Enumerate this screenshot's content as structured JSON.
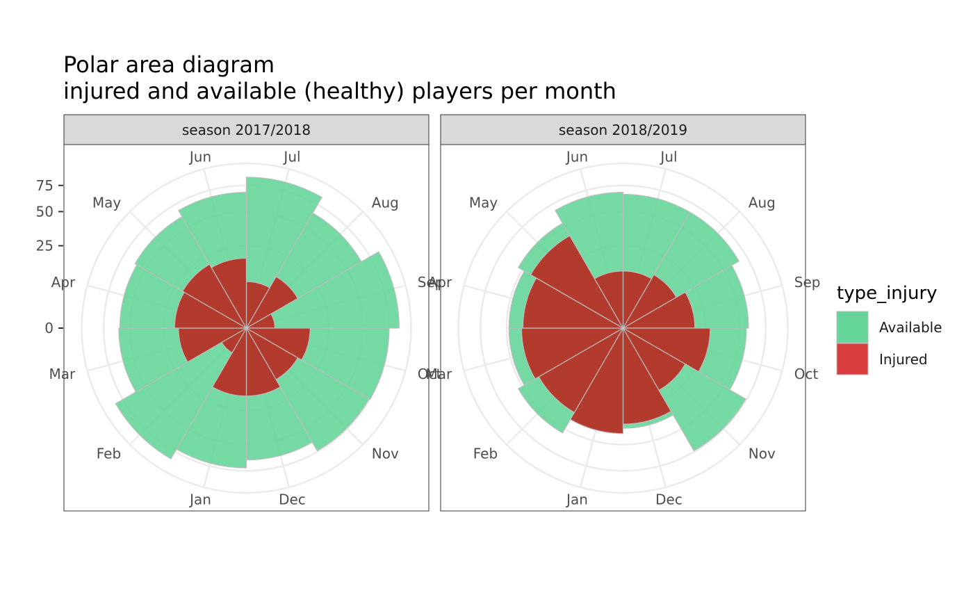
{
  "chart_data": {
    "type": "polar-area",
    "title_lines": [
      "Polar area diagram",
      "injured and available (healthy) players per month"
    ],
    "radial_scale": "sqrt",
    "radial_ticks": [
      0,
      25,
      50,
      75
    ],
    "radial_max": 100,
    "months": [
      "Jul",
      "Aug",
      "Sep",
      "Oct",
      "Nov",
      "Dec",
      "Jan",
      "Feb",
      "Mar",
      "Apr",
      "May",
      "Jun"
    ],
    "legend": {
      "title": "type_injury",
      "entries": [
        {
          "label": "Available",
          "color": "#66d59a"
        },
        {
          "label": "Injured",
          "color": "#d93c3c"
        }
      ]
    },
    "colors": {
      "injured_overlay": "#b5362a",
      "stroke": "#bdbdbd",
      "grid": "#ebebeb"
    },
    "facets": [
      {
        "strip": "season 2017/2018",
        "available": [
          84,
          65,
          86,
          75,
          74,
          64,
          72,
          84,
          60,
          59,
          61,
          68
        ],
        "injured": [
          8,
          13,
          3,
          15,
          13,
          17,
          17,
          3,
          17,
          19,
          20,
          18
        ]
      },
      {
        "strip": "season 2018/2019",
        "available": [
          66,
          66,
          58,
          56,
          74,
          37,
          40,
          54,
          48,
          48,
          54,
          68
        ],
        "injured": [
          12,
          14,
          19,
          28,
          19,
          34,
          41,
          35,
          38,
          37,
          42,
          12
        ]
      }
    ]
  }
}
